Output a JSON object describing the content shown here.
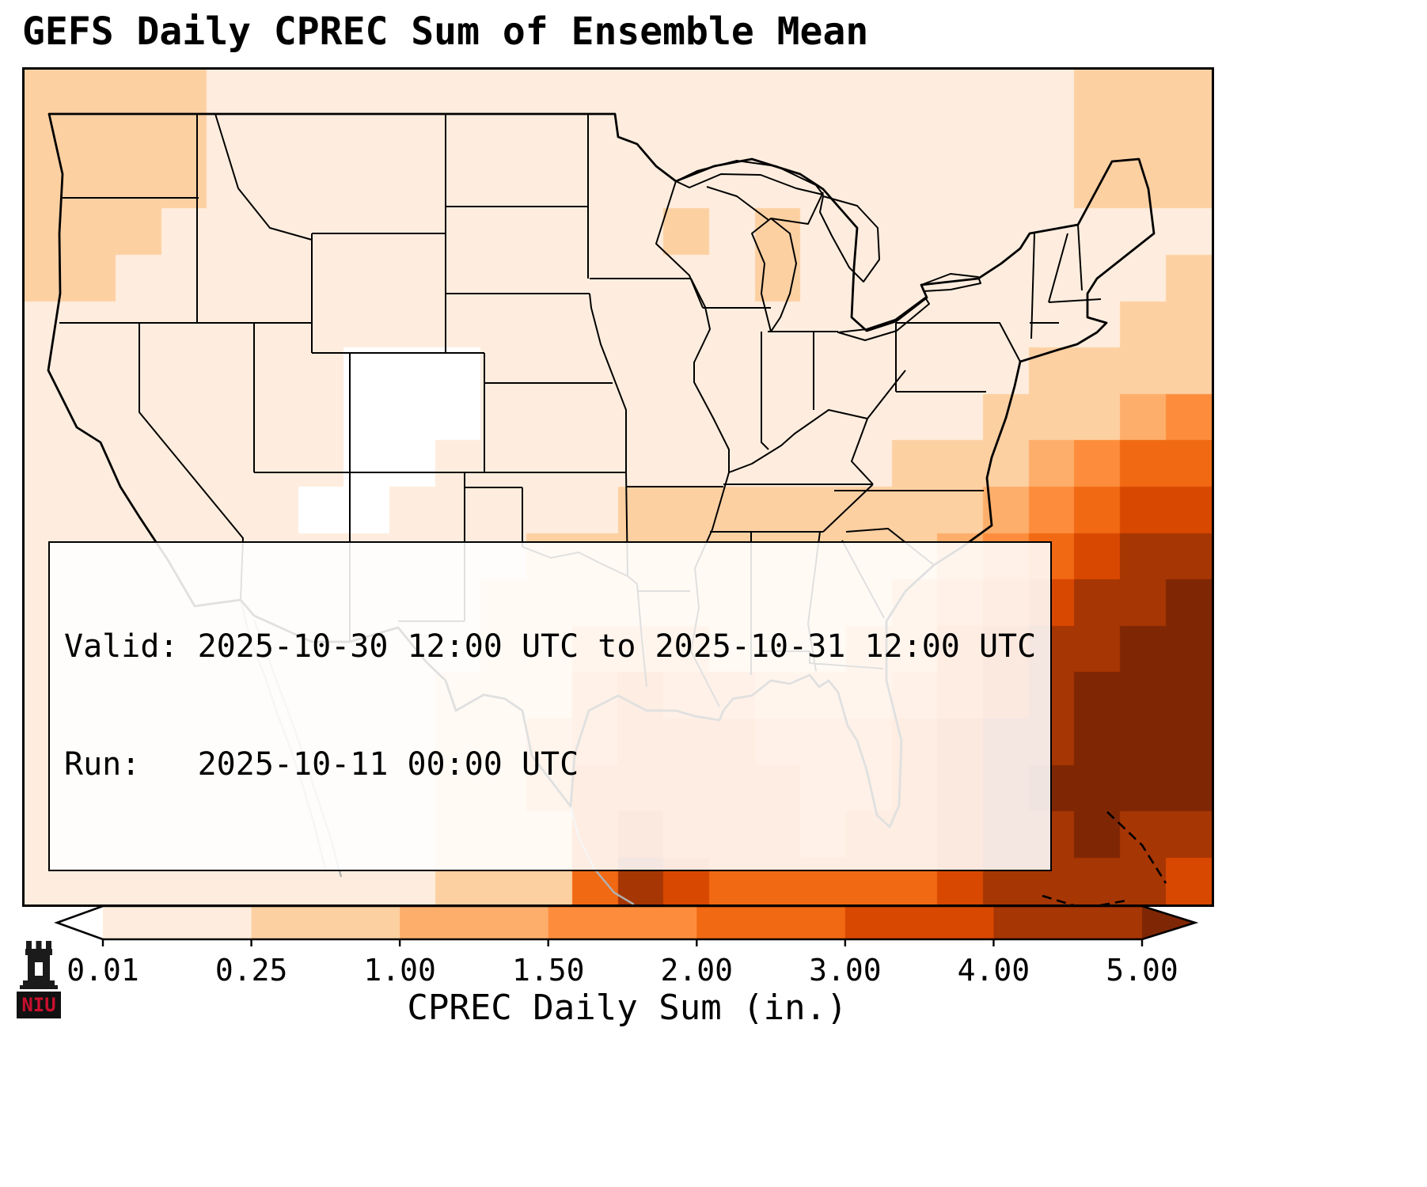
{
  "title": "GEFS Daily CPREC Sum of Ensemble Mean",
  "info_box": {
    "line1": "Valid: 2025-10-30 12:00 UTC to 2025-10-31 12:00 UTC",
    "line2": "Run:   2025-10-11 00:00 UTC"
  },
  "colorbar": {
    "label": "CPREC Daily Sum (in.)",
    "ticks": [
      "0.01",
      "0.25",
      "1.00",
      "1.50",
      "2.00",
      "3.00",
      "4.00",
      "5.00"
    ],
    "under_color": "#ffffff",
    "bin_colors": [
      "#feedde",
      "#fdd0a2",
      "#fdae6b",
      "#fd8d3c",
      "#f16913",
      "#d94801",
      "#a63603"
    ],
    "over_color": "#7f2704"
  },
  "logo": {
    "name": "NIU",
    "text": "NIU",
    "accent_color": "#c8102e"
  },
  "chart_data": {
    "type": "heatmap",
    "title": "GEFS Daily CPREC Sum of Ensemble Mean",
    "colorbar_label": "CPREC Daily Sum (in.)",
    "units": "inches",
    "levels": [
      0.01,
      0.25,
      1.0,
      1.5,
      2.0,
      3.0,
      4.0,
      5.0
    ],
    "region": {
      "lon_min": -126,
      "lon_max": -64,
      "lat_min": 22.5,
      "lat_max": 50.5
    },
    "grid_cols": 26,
    "grid_rows": 18,
    "grid_note": "Approximate daily precipitation sum (in.) read from map shading; rows north to south, cols west to east",
    "grid": [
      [
        0.5,
        0.6,
        0.4,
        0.3,
        0.2,
        0.15,
        0.1,
        0.08,
        0.08,
        0.06,
        0.06,
        0.05,
        0.08,
        0.1,
        0.12,
        0.08,
        0.1,
        0.1,
        0.08,
        0.1,
        0.12,
        0.15,
        0.2,
        0.25,
        0.3,
        0.3
      ],
      [
        0.6,
        0.7,
        0.5,
        0.3,
        0.2,
        0.15,
        0.1,
        0.06,
        0.05,
        0.05,
        0.05,
        0.05,
        0.08,
        0.1,
        0.12,
        0.1,
        0.12,
        0.1,
        0.1,
        0.1,
        0.12,
        0.15,
        0.2,
        0.3,
        0.35,
        0.3
      ],
      [
        0.4,
        0.5,
        0.35,
        0.25,
        0.2,
        0.12,
        0.08,
        0.05,
        0.04,
        0.04,
        0.04,
        0.05,
        0.1,
        0.15,
        0.2,
        0.15,
        0.2,
        0.15,
        0.1,
        0.1,
        0.1,
        0.12,
        0.18,
        0.25,
        0.3,
        0.25
      ],
      [
        0.3,
        0.35,
        0.25,
        0.2,
        0.15,
        0.1,
        0.06,
        0.04,
        0.03,
        0.03,
        0.04,
        0.05,
        0.1,
        0.15,
        0.25,
        0.2,
        0.3,
        0.2,
        0.12,
        0.1,
        0.08,
        0.1,
        0.15,
        0.2,
        0.2,
        0.2
      ],
      [
        0.25,
        0.25,
        0.2,
        0.15,
        0.1,
        0.08,
        0.05,
        0.03,
        0.03,
        0.03,
        0.04,
        0.05,
        0.08,
        0.12,
        0.2,
        0.15,
        0.25,
        0.15,
        0.1,
        0.08,
        0.08,
        0.1,
        0.12,
        0.15,
        0.2,
        0.25
      ],
      [
        0.2,
        0.2,
        0.15,
        0.1,
        0.08,
        0.06,
        0.04,
        0.02,
        0.02,
        0.03,
        0.03,
        0.04,
        0.06,
        0.1,
        0.12,
        0.1,
        0.15,
        0.12,
        0.1,
        0.08,
        0.08,
        0.1,
        0.15,
        0.2,
        0.3,
        0.4
      ],
      [
        0.15,
        0.15,
        0.1,
        0.08,
        0.06,
        0.05,
        0.03,
        0.005,
        0.005,
        0.005,
        0.03,
        0.04,
        0.05,
        0.08,
        0.1,
        0.1,
        0.12,
        0.1,
        0.1,
        0.1,
        0.12,
        0.15,
        0.25,
        0.35,
        0.5,
        0.7
      ],
      [
        0.12,
        0.1,
        0.08,
        0.06,
        0.05,
        0.04,
        0.03,
        0.005,
        0.005,
        0.005,
        0.03,
        0.04,
        0.06,
        0.1,
        0.12,
        0.12,
        0.15,
        0.12,
        0.12,
        0.15,
        0.2,
        0.3,
        0.5,
        0.8,
        1.2,
        1.6
      ],
      [
        0.1,
        0.08,
        0.06,
        0.05,
        0.04,
        0.03,
        0.03,
        0.005,
        0.005,
        0.03,
        0.05,
        0.08,
        0.1,
        0.15,
        0.2,
        0.2,
        0.2,
        0.15,
        0.2,
        0.25,
        0.4,
        0.7,
        1.1,
        1.7,
        2.3,
        2.8
      ],
      [
        0.08,
        0.06,
        0.05,
        0.04,
        0.03,
        0.03,
        0.005,
        0.005,
        0.03,
        0.05,
        0.1,
        0.15,
        0.2,
        0.3,
        0.4,
        0.3,
        0.25,
        0.25,
        0.3,
        0.4,
        0.7,
        1.2,
        1.8,
        2.6,
        3.3,
        3.8
      ],
      [
        0.08,
        0.06,
        0.05,
        0.04,
        0.03,
        0.02,
        0.02,
        0.03,
        0.05,
        0.1,
        0.2,
        0.3,
        0.4,
        0.6,
        0.5,
        0.4,
        0.35,
        0.4,
        0.5,
        0.7,
        1.1,
        1.8,
        2.6,
        3.4,
        4.2,
        4.6
      ],
      [
        0.06,
        0.05,
        0.04,
        0.03,
        0.03,
        0.02,
        0.03,
        0.05,
        0.08,
        0.15,
        0.3,
        0.5,
        0.7,
        0.9,
        0.7,
        0.5,
        0.5,
        0.6,
        0.7,
        1.0,
        1.6,
        2.4,
        3.3,
        4.2,
        4.8,
        5.2
      ],
      [
        0.06,
        0.05,
        0.04,
        0.03,
        0.03,
        0.03,
        0.05,
        0.08,
        0.1,
        0.2,
        0.4,
        0.7,
        1.1,
        1.4,
        1.2,
        0.9,
        0.8,
        0.8,
        1.0,
        1.4,
        2.1,
        3.0,
        4.0,
        4.8,
        5.4,
        5.6
      ],
      [
        0.05,
        0.05,
        0.04,
        0.04,
        0.04,
        0.05,
        0.08,
        0.1,
        0.15,
        0.25,
        0.5,
        0.9,
        1.5,
        2.0,
        1.8,
        1.5,
        1.3,
        1.1,
        1.3,
        1.8,
        2.6,
        3.6,
        4.5,
        5.3,
        5.7,
        5.8
      ],
      [
        0.05,
        0.05,
        0.05,
        0.05,
        0.05,
        0.06,
        0.1,
        0.12,
        0.2,
        0.3,
        0.5,
        1.0,
        1.8,
        2.4,
        2.3,
        2.0,
        1.8,
        1.5,
        1.6,
        2.2,
        3.0,
        4.0,
        4.9,
        5.5,
        5.8,
        5.6
      ],
      [
        0.05,
        0.05,
        0.05,
        0.06,
        0.06,
        0.08,
        0.1,
        0.15,
        0.2,
        0.3,
        0.5,
        1.0,
        2.0,
        2.8,
        2.6,
        2.3,
        2.0,
        1.7,
        1.8,
        2.4,
        3.2,
        4.2,
        5.0,
        5.6,
        5.5,
        5.0
      ],
      [
        0.05,
        0.05,
        0.06,
        0.06,
        0.08,
        0.1,
        0.12,
        0.15,
        0.2,
        0.3,
        0.5,
        0.9,
        2.2,
        3.3,
        2.9,
        2.5,
        2.2,
        1.9,
        2.0,
        2.6,
        3.4,
        4.3,
        4.9,
        5.2,
        4.8,
        4.2
      ],
      [
        0.05,
        0.06,
        0.06,
        0.08,
        0.1,
        0.1,
        0.12,
        0.15,
        0.2,
        0.3,
        0.5,
        0.8,
        2.5,
        4.6,
        3.2,
        2.8,
        2.4,
        2.1,
        2.2,
        2.8,
        3.6,
        4.2,
        4.5,
        4.6,
        4.2,
        3.6
      ]
    ]
  }
}
